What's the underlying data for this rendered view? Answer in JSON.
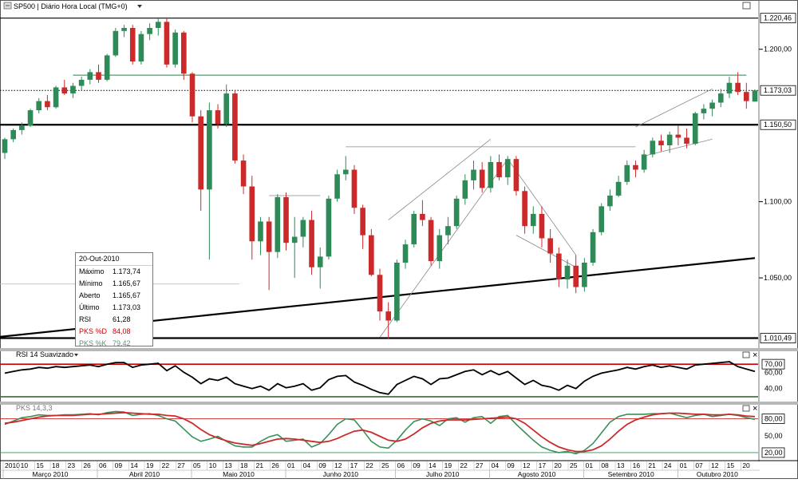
{
  "window": {
    "title": "SP500 | Diário Hora Local (TMG+0)",
    "dropdown_icon": "caret-down-icon",
    "menu_icon": "chart-menu-icon"
  },
  "panels": {
    "rsi": {
      "title": "RSI 14 Suavizado"
    },
    "stoch": {
      "title": "PKS 14,3,3"
    }
  },
  "colors": {
    "bull": "#2e8b57",
    "bear": "#cc2a2a",
    "resistance_green": "#2e7d4f",
    "rsi_line": "#000000",
    "rsi_levels": "#cc0000",
    "stoch_d": "#cc2a2a",
    "stoch_k": "#3a8f5a",
    "info_d": "#cc0000",
    "info_k": "#6a8a7a"
  },
  "info_box": {
    "date": "20-Out-2010",
    "rows": [
      {
        "label": "Máximo",
        "value": "1.173,74",
        "color": "#000000"
      },
      {
        "label": "Mínimo",
        "value": "1.165,67",
        "color": "#000000"
      },
      {
        "label": "Aberto",
        "value": "1.165,67",
        "color": "#000000"
      },
      {
        "label": "Último",
        "value": "1.173,03",
        "color": "#000000"
      },
      {
        "label": "RSI",
        "value": "61,28",
        "color": "#000000"
      },
      {
        "label": "PKS %D",
        "value": "84,08",
        "color": "#cc0000"
      },
      {
        "label": "PKS %K",
        "value": "79,42",
        "color": "#6a8a7a"
      }
    ]
  },
  "chart_data": [
    {
      "type": "candlestick",
      "title": "SP500 | Diário Hora Local (TMG+0)",
      "ylim": [
        1005,
        1225
      ],
      "price_labels": [
        {
          "value": 1220.46,
          "text": "1.220,46",
          "style": "boxed"
        },
        {
          "value": 1200,
          "text": "1.200,00",
          "style": "tick"
        },
        {
          "value": 1173.03,
          "text": "1.173,03",
          "style": "boxed"
        },
        {
          "value": 1150.5,
          "text": "1.150,50",
          "style": "boxed"
        },
        {
          "value": 1100,
          "text": "1.100,00",
          "style": "tick"
        },
        {
          "value": 1050,
          "text": "1.050,00",
          "style": "tick"
        },
        {
          "value": 1010.49,
          "text": "1.010,49",
          "style": "boxed"
        }
      ],
      "horizontal_levels": [
        {
          "value": 1220.46,
          "style": "solid",
          "color": "#000000"
        },
        {
          "value": 1173.03,
          "style": "dotted",
          "color": "#000000"
        },
        {
          "value": 1150.5,
          "style": "thick",
          "color": "#000000"
        },
        {
          "value": 1010.49,
          "style": "thick",
          "color": "#000000"
        }
      ],
      "trendlines": [
        {
          "from": [
            8,
            1183
          ],
          "to": [
            87,
            1183
          ],
          "color": "#2e7d4f",
          "width": 1
        },
        {
          "from": [
            -8,
            1007
          ],
          "to": [
            88,
            1063
          ],
          "color": "#000000",
          "width": 2.2
        },
        {
          "from": [
            44,
            1011
          ],
          "to": [
            59,
            1128
          ],
          "color": "#888888",
          "width": 0.8
        },
        {
          "from": [
            45,
            1088
          ],
          "to": [
            57,
            1141
          ],
          "color": "#888888",
          "width": 0.8
        },
        {
          "from": [
            59,
            1128
          ],
          "to": [
            67,
            1065
          ],
          "color": "#888888",
          "width": 0.8
        },
        {
          "from": [
            60,
            1078
          ],
          "to": [
            67,
            1057
          ],
          "color": "#888888",
          "width": 0.8
        },
        {
          "from": [
            74,
            1149
          ],
          "to": [
            83,
            1174
          ],
          "color": "#888888",
          "width": 0.8
        },
        {
          "from": [
            75,
            1130
          ],
          "to": [
            83,
            1141
          ],
          "color": "#888888",
          "width": 0.8
        },
        {
          "from": [
            31,
            1104
          ],
          "to": [
            37,
            1104
          ],
          "color": "#888888",
          "width": 0.8
        },
        {
          "from": [
            40,
            1136
          ],
          "to": [
            74,
            1136
          ],
          "color": "#888888",
          "width": 0.8
        }
      ],
      "candles": [
        [
          1132,
          1142,
          1128,
          1141
        ],
        [
          1141,
          1148,
          1139,
          1147
        ],
        [
          1147,
          1152,
          1144,
          1150
        ],
        [
          1150,
          1161,
          1149,
          1160
        ],
        [
          1160,
          1168,
          1158,
          1166
        ],
        [
          1166,
          1170,
          1160,
          1162
        ],
        [
          1162,
          1176,
          1161,
          1175
        ],
        [
          1175,
          1180,
          1170,
          1171
        ],
        [
          1171,
          1178,
          1168,
          1176
        ],
        [
          1176,
          1182,
          1173,
          1180
        ],
        [
          1180,
          1187,
          1177,
          1185
        ],
        [
          1185,
          1190,
          1178,
          1180
        ],
        [
          1180,
          1197,
          1179,
          1196
        ],
        [
          1196,
          1214,
          1195,
          1212
        ],
        [
          1212,
          1216,
          1208,
          1214
        ],
        [
          1214,
          1216,
          1190,
          1192
        ],
        [
          1192,
          1212,
          1190,
          1210
        ],
        [
          1210,
          1217,
          1206,
          1214
        ],
        [
          1214,
          1220,
          1209,
          1218
        ],
        [
          1218,
          1221,
          1188,
          1190
        ],
        [
          1190,
          1213,
          1188,
          1211
        ],
        [
          1211,
          1212,
          1180,
          1184
        ],
        [
          1184,
          1185,
          1152,
          1156
        ],
        [
          1156,
          1160,
          1094,
          1108
        ],
        [
          1108,
          1165,
          1062,
          1160
        ],
        [
          1160,
          1164,
          1148,
          1151
        ],
        [
          1151,
          1177,
          1149,
          1171
        ],
        [
          1171,
          1173,
          1125,
          1127
        ],
        [
          1127,
          1131,
          1105,
          1110
        ],
        [
          1110,
          1117,
          1062,
          1074
        ],
        [
          1074,
          1090,
          1065,
          1087
        ],
        [
          1087,
          1090,
          1042,
          1067
        ],
        [
          1067,
          1105,
          1063,
          1103
        ],
        [
          1103,
          1106,
          1068,
          1073
        ],
        [
          1073,
          1090,
          1050,
          1077
        ],
        [
          1077,
          1090,
          1070,
          1088
        ],
        [
          1088,
          1094,
          1052,
          1057
        ],
        [
          1057,
          1070,
          1043,
          1064
        ],
        [
          1064,
          1104,
          1062,
          1102
        ],
        [
          1102,
          1121,
          1100,
          1118
        ],
        [
          1118,
          1130,
          1114,
          1121
        ],
        [
          1121,
          1124,
          1092,
          1096
        ],
        [
          1096,
          1098,
          1069,
          1078
        ],
        [
          1078,
          1082,
          1051,
          1052
        ],
        [
          1052,
          1056,
          1022,
          1028
        ],
        [
          1028,
          1034,
          1010,
          1022
        ],
        [
          1022,
          1062,
          1021,
          1060
        ],
        [
          1060,
          1075,
          1056,
          1072
        ],
        [
          1072,
          1094,
          1070,
          1092
        ],
        [
          1092,
          1101,
          1084,
          1088
        ],
        [
          1088,
          1090,
          1058,
          1061
        ],
        [
          1061,
          1082,
          1056,
          1078
        ],
        [
          1078,
          1090,
          1072,
          1084
        ],
        [
          1084,
          1104,
          1082,
          1102
        ],
        [
          1102,
          1118,
          1098,
          1114
        ],
        [
          1114,
          1127,
          1108,
          1121
        ],
        [
          1121,
          1126,
          1106,
          1109
        ],
        [
          1109,
          1130,
          1106,
          1126
        ],
        [
          1126,
          1131,
          1114,
          1116
        ],
        [
          1116,
          1130,
          1111,
          1128
        ],
        [
          1128,
          1130,
          1104,
          1107
        ],
        [
          1107,
          1110,
          1079,
          1084
        ],
        [
          1084,
          1097,
          1079,
          1092
        ],
        [
          1092,
          1097,
          1070,
          1076
        ],
        [
          1076,
          1082,
          1060,
          1066
        ],
        [
          1066,
          1070,
          1044,
          1049
        ],
        [
          1049,
          1062,
          1043,
          1058
        ],
        [
          1058,
          1065,
          1040,
          1044
        ],
        [
          1044,
          1063,
          1041,
          1060
        ],
        [
          1060,
          1082,
          1058,
          1080
        ],
        [
          1080,
          1099,
          1078,
          1097
        ],
        [
          1097,
          1108,
          1094,
          1104
        ],
        [
          1104,
          1117,
          1103,
          1113
        ],
        [
          1113,
          1127,
          1111,
          1124
        ],
        [
          1124,
          1127,
          1116,
          1121
        ],
        [
          1121,
          1134,
          1119,
          1131
        ],
        [
          1131,
          1142,
          1129,
          1140
        ],
        [
          1140,
          1144,
          1133,
          1137
        ],
        [
          1137,
          1146,
          1132,
          1144
        ],
        [
          1144,
          1150,
          1137,
          1142
        ],
        [
          1142,
          1148,
          1135,
          1138
        ],
        [
          1138,
          1159,
          1137,
          1158
        ],
        [
          1158,
          1164,
          1154,
          1161
        ],
        [
          1161,
          1167,
          1156,
          1165
        ],
        [
          1165,
          1174,
          1162,
          1171
        ],
        [
          1171,
          1182,
          1168,
          1178
        ],
        [
          1178,
          1185,
          1170,
          1172
        ],
        [
          1172,
          1178,
          1161,
          1166
        ],
        [
          1165.67,
          1173.74,
          1165.67,
          1173.03
        ]
      ]
    },
    {
      "type": "line",
      "title": "RSI 14 Suavizado",
      "ylim": [
        25,
        78
      ],
      "levels": [
        70,
        30
      ],
      "tick_labels": [
        {
          "value": 70,
          "text": "70,00",
          "boxed": true
        },
        {
          "value": 60,
          "text": "60,00",
          "boxed": false
        },
        {
          "value": 40,
          "text": "40,00",
          "boxed": false
        }
      ],
      "series": [
        {
          "values": [
            59,
            61,
            63,
            64,
            66,
            65,
            67,
            66,
            67,
            68,
            69,
            67,
            70,
            72,
            72,
            66,
            69,
            70,
            71,
            62,
            68,
            60,
            54,
            46,
            52,
            50,
            54,
            46,
            43,
            40,
            43,
            38,
            46,
            41,
            43,
            46,
            38,
            41,
            51,
            55,
            56,
            48,
            44,
            39,
            35,
            33,
            45,
            50,
            55,
            52,
            45,
            52,
            53,
            57,
            61,
            63,
            57,
            62,
            57,
            61,
            53,
            45,
            50,
            44,
            42,
            38,
            44,
            40,
            49,
            55,
            59,
            61,
            63,
            66,
            64,
            67,
            69,
            66,
            68,
            66,
            64,
            69,
            70,
            71,
            72,
            73,
            67,
            64,
            61
          ]
        }
      ]
    },
    {
      "type": "line",
      "title": "PKS 14,3,3",
      "ylim": [
        10,
        95
      ],
      "levels": [
        80,
        20
      ],
      "tick_labels": [
        {
          "value": 80,
          "text": "80,00",
          "boxed": true
        },
        {
          "value": 50,
          "text": "50,00",
          "boxed": false
        },
        {
          "value": 20,
          "text": "20,00",
          "boxed": true
        }
      ],
      "series": [
        {
          "name": "PKS %D",
          "values": [
            72,
            74,
            77,
            80,
            83,
            85,
            86,
            86,
            86,
            87,
            88,
            88,
            89,
            90,
            91,
            90,
            89,
            88,
            88,
            86,
            85,
            80,
            72,
            61,
            52,
            46,
            41,
            37,
            35,
            33,
            36,
            40,
            44,
            45,
            44,
            42,
            40,
            38,
            40,
            45,
            52,
            58,
            60,
            56,
            49,
            42,
            40,
            44,
            53,
            64,
            72,
            76,
            78,
            78,
            78,
            79,
            80,
            81,
            82,
            83,
            80,
            72,
            60,
            48,
            38,
            30,
            25,
            22,
            22,
            25,
            32,
            44,
            58,
            70,
            78,
            83,
            87,
            89,
            90,
            90,
            89,
            88,
            88,
            87,
            87,
            88,
            87,
            85,
            84
          ]
        },
        {
          "name": "PKS %K",
          "values": [
            70,
            76,
            82,
            84,
            87,
            86,
            86,
            87,
            87,
            88,
            89,
            87,
            91,
            93,
            92,
            86,
            88,
            89,
            86,
            80,
            76,
            62,
            48,
            40,
            44,
            49,
            40,
            32,
            30,
            30,
            40,
            48,
            52,
            40,
            42,
            44,
            30,
            36,
            52,
            70,
            80,
            78,
            60,
            40,
            30,
            28,
            42,
            60,
            75,
            80,
            76,
            68,
            80,
            82,
            74,
            82,
            84,
            72,
            84,
            86,
            70,
            56,
            42,
            30,
            24,
            20,
            22,
            18,
            24,
            36,
            55,
            74,
            84,
            88,
            88,
            88,
            89,
            89,
            90,
            86,
            82,
            86,
            88,
            84,
            86,
            88,
            86,
            82,
            79
          ]
        }
      ]
    }
  ],
  "time_axis": {
    "day_labels": [
      "2010",
      "10",
      "15",
      "18",
      "23",
      "26",
      "06",
      "09",
      "14",
      "19",
      "22",
      "27",
      "05",
      "10",
      "13",
      "18",
      "21",
      "26",
      "01",
      "04",
      "09",
      "12",
      "17",
      "22",
      "25",
      "06",
      "09",
      "14",
      "19",
      "22",
      "27",
      "04",
      "09",
      "12",
      "17",
      "20",
      "25",
      "01",
      "08",
      "13",
      "16",
      "21",
      "24",
      "01",
      "07",
      "12",
      "15",
      "20"
    ],
    "months": [
      {
        "label": "Março 2010",
        "start": 0,
        "end": 6
      },
      {
        "label": "Abril 2010",
        "start": 6,
        "end": 12
      },
      {
        "label": "Maio 2010",
        "start": 12,
        "end": 18
      },
      {
        "label": "Junho 2010",
        "start": 18,
        "end": 25
      },
      {
        "label": "Julho 2010",
        "start": 25,
        "end": 31
      },
      {
        "label": "Agosto 2010",
        "start": 31,
        "end": 37
      },
      {
        "label": "Setembro 2010",
        "start": 37,
        "end": 43
      },
      {
        "label": "Outubro 2010",
        "start": 43,
        "end": 48
      }
    ]
  }
}
